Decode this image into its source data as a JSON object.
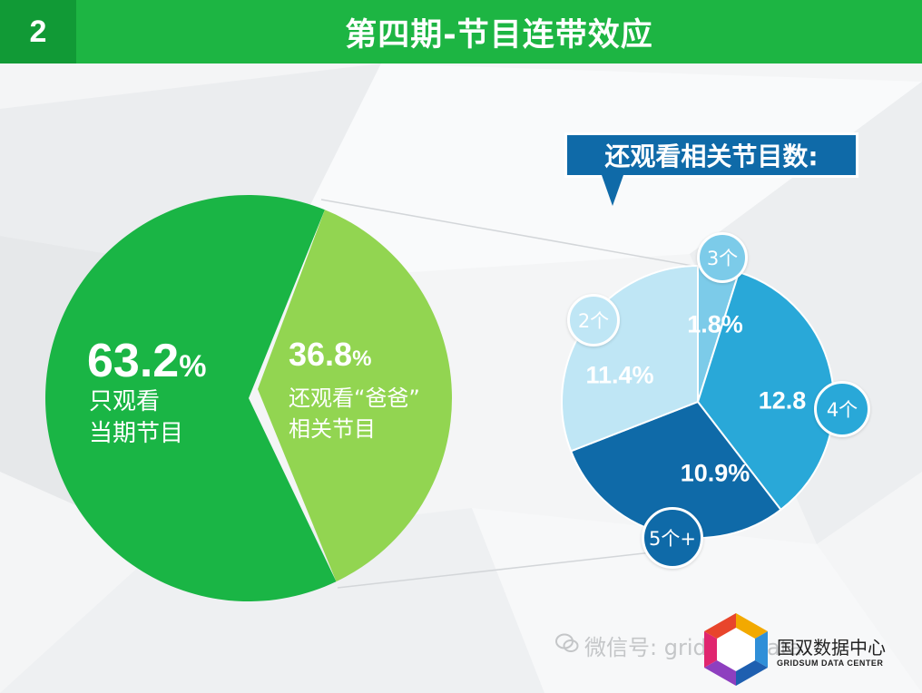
{
  "header": {
    "slide_number": "2",
    "title": "第四期-节目连带效应"
  },
  "callout": {
    "title": "还观看相关节目数:"
  },
  "colors": {
    "header_green": "#1db543",
    "number_green": "#119a36",
    "pie_dark_green": "#1ab545",
    "pie_light_green": "#92d551",
    "blue_dark": "#0f6aa8",
    "blue_mid": "#29a8d8",
    "blue_light": "#7ccbe9",
    "blue_pale": "#bfe6f5"
  },
  "chart_data": [
    {
      "type": "pie",
      "slices": [
        {
          "value": 63.2,
          "value_text": "63.2",
          "unit": "%",
          "label_lines": [
            "只观看",
            "当期节目"
          ],
          "color": "#1ab545"
        },
        {
          "value": 36.8,
          "value_text": "36.8",
          "unit": "%",
          "label_lines": [
            "还观看“爸爸”",
            "相关节目"
          ],
          "color": "#92d551"
        }
      ]
    },
    {
      "type": "pie",
      "slices": [
        {
          "category": "3个",
          "value": 1.8,
          "value_text": "1.8%",
          "color": "#7ccbe9"
        },
        {
          "category": "4个",
          "value": 12.8,
          "value_text": "12.8",
          "color": "#29a8d8"
        },
        {
          "category": "5个+",
          "value": 10.9,
          "value_text": "10.9%",
          "color": "#0f6aa8"
        },
        {
          "category": "2个",
          "value": 11.4,
          "value_text": "11.4%",
          "color": "#bfe6f5"
        }
      ]
    }
  ],
  "watermark": {
    "text": "微信号: gridsumdata"
  },
  "logo": {
    "name": "国双数据中心",
    "subtitle": "GRIDSUM DATA CENTER"
  }
}
